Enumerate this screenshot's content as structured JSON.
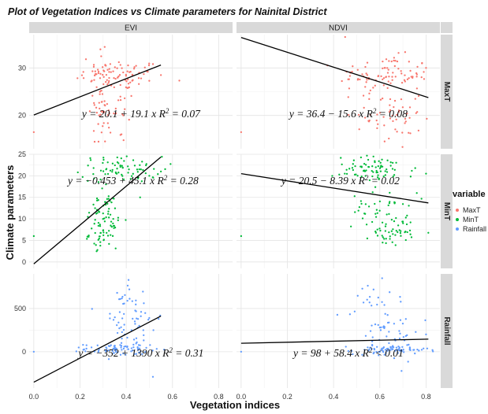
{
  "chart_data": {
    "type": "scatter",
    "title": "Plot of Vegetation Indices vs Climate parameters  for Nainital District",
    "xlabel": "Vegetation indices",
    "ylabel": "Climate parameters",
    "facet_columns": [
      "EVI",
      "NDVI"
    ],
    "facet_rows": [
      "MaxT",
      "MinT",
      "Rainfall"
    ],
    "x_ticks": [
      "0.0",
      "0.2",
      "0.4",
      "0.6",
      "0.8"
    ],
    "xlim": [
      -0.02,
      0.86
    ],
    "grid": true,
    "legend": {
      "title": "variable",
      "position": "right",
      "items": [
        {
          "label": "MaxT",
          "color": "#f8766d"
        },
        {
          "label": "MinT",
          "color": "#00ba38"
        },
        {
          "label": "Rainfall",
          "color": "#619cff"
        }
      ]
    },
    "rows": [
      {
        "name": "MaxT",
        "ylim": [
          13,
          37
        ],
        "y_ticks": [
          20,
          30
        ]
      },
      {
        "name": "MinT",
        "ylim": [
          -1.5,
          25
        ],
        "y_ticks": [
          0,
          5,
          10,
          15,
          20,
          25
        ]
      },
      {
        "name": "Rainfall",
        "ylim": [
          -420,
          900
        ],
        "y_ticks": [
          0,
          500
        ]
      }
    ],
    "panels": [
      {
        "column": "EVI",
        "row": "MaxT",
        "intercept": 20.1,
        "slope": 19.1,
        "fit_x": [
          0.0,
          0.55
        ],
        "equation": {
          "lhs": "y = ",
          "rhs": "20.1 + 19.1 x",
          "r2_sep": "R",
          "r2_rel": " = 0.07"
        },
        "clusters": [
          {
            "cx": 0.38,
            "cy": 28.5,
            "sx": 0.09,
            "sy": 1.6,
            "n": 75
          },
          {
            "cx": 0.29,
            "cy": 25,
            "sx": 0.025,
            "sy": 6,
            "n": 50
          },
          {
            "cx": 0.35,
            "cy": 20,
            "sx": 0.05,
            "sy": 3,
            "n": 25
          }
        ],
        "outliers": [
          [
            0.0,
            16.5
          ],
          [
            0.28,
            14.5
          ],
          [
            0.55,
            28.5
          ]
        ]
      },
      {
        "column": "NDVI",
        "row": "MaxT",
        "intercept": 36.4,
        "slope": -15.6,
        "fit_x": [
          0.0,
          0.81
        ],
        "equation": {
          "lhs": "y = ",
          "rhs": "36.4 − 15.6 x",
          "r2_sep": "R",
          "r2_rel": " = 0.08"
        },
        "clusters": [
          {
            "cx": 0.62,
            "cy": 28.5,
            "sx": 0.1,
            "sy": 2,
            "n": 90
          },
          {
            "cx": 0.66,
            "cy": 20,
            "sx": 0.06,
            "sy": 3.5,
            "n": 55
          }
        ],
        "outliers": [
          [
            0.0,
            16.5
          ],
          [
            0.45,
            36.5
          ],
          [
            0.8,
            30
          ]
        ]
      },
      {
        "column": "EVI",
        "row": "MinT",
        "intercept": -0.453,
        "slope": 45.1,
        "fit_x": [
          0.0,
          0.55
        ],
        "equation": {
          "lhs": "y = ",
          "rhs": "−0.453 + 45.1 x",
          "r2_sep": "R",
          "r2_rel": " = 0.28"
        },
        "clusters": [
          {
            "cx": 0.38,
            "cy": 21.5,
            "sx": 0.09,
            "sy": 1.5,
            "n": 75
          },
          {
            "cx": 0.3,
            "cy": 12,
            "sx": 0.035,
            "sy": 2,
            "n": 40
          },
          {
            "cx": 0.3,
            "cy": 6.5,
            "sx": 0.03,
            "sy": 1.6,
            "n": 45
          }
        ],
        "outliers": [
          [
            0.0,
            6
          ],
          [
            0.55,
            21
          ],
          [
            0.46,
            15
          ]
        ]
      },
      {
        "column": "NDVI",
        "row": "MinT",
        "intercept": 20.5,
        "slope": -8.39,
        "fit_x": [
          0.0,
          0.81
        ],
        "equation": {
          "lhs": "y = ",
          "rhs": "20.5 − 8.39 x",
          "r2_sep": "R",
          "r2_rel": " = 0.02"
        },
        "clusters": [
          {
            "cx": 0.58,
            "cy": 21.5,
            "sx": 0.09,
            "sy": 1.5,
            "n": 75
          },
          {
            "cx": 0.6,
            "cy": 12,
            "sx": 0.06,
            "sy": 2,
            "n": 40
          },
          {
            "cx": 0.66,
            "cy": 7,
            "sx": 0.05,
            "sy": 1.6,
            "n": 45
          }
        ],
        "outliers": [
          [
            0.0,
            6
          ],
          [
            0.76,
            16
          ],
          [
            0.8,
            20.5
          ]
        ]
      },
      {
        "column": "EVI",
        "row": "Rainfall",
        "intercept": -352,
        "slope": 1390,
        "fit_x": [
          0.0,
          0.55
        ],
        "equation": {
          "lhs": "y = ",
          "rhs": "−352 + 1390 x",
          "r2_sep": "R",
          "r2_rel": " = 0.31"
        },
        "clusters": [
          {
            "cx": 0.36,
            "cy": 30,
            "sx": 0.07,
            "sy": 30,
            "n": 70
          },
          {
            "cx": 0.42,
            "cy": 280,
            "sx": 0.07,
            "sy": 190,
            "n": 55
          },
          {
            "cx": 0.4,
            "cy": 650,
            "sx": 0.04,
            "sy": 100,
            "n": 12
          }
        ],
        "outliers": [
          [
            0.0,
            0
          ],
          [
            0.41,
            830
          ],
          [
            0.54,
            380
          ]
        ]
      },
      {
        "column": "NDVI",
        "row": "Rainfall",
        "intercept": 98,
        "slope": 58.4,
        "fit_x": [
          0.0,
          0.81
        ],
        "equation": {
          "lhs": "y = ",
          "rhs": "98 + 58.4 x",
          "r2_sep": "R",
          "r2_rel": " < 0.01"
        },
        "clusters": [
          {
            "cx": 0.65,
            "cy": 20,
            "sx": 0.08,
            "sy": 25,
            "n": 70
          },
          {
            "cx": 0.62,
            "cy": 250,
            "sx": 0.08,
            "sy": 180,
            "n": 55
          },
          {
            "cx": 0.6,
            "cy": 650,
            "sx": 0.05,
            "sy": 100,
            "n": 12
          }
        ],
        "outliers": [
          [
            0.0,
            0
          ],
          [
            0.61,
            850
          ],
          [
            0.8,
            200
          ]
        ]
      }
    ]
  }
}
